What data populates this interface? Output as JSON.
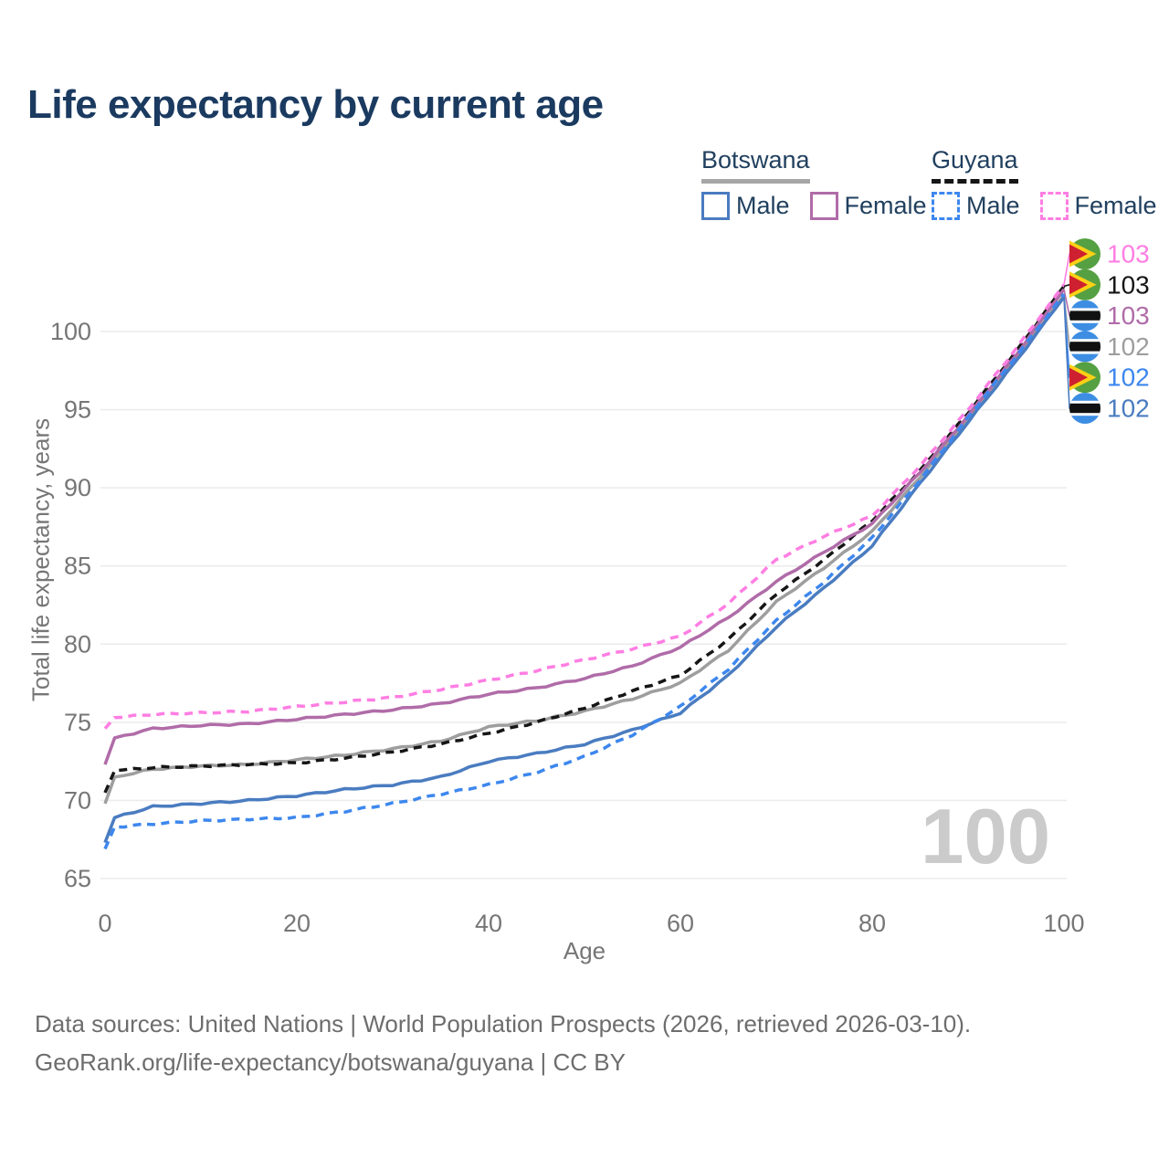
{
  "title": "Life expectancy by current age",
  "watermark": "100",
  "legend": {
    "groups": [
      {
        "label": "Botswana",
        "line_style": "solid",
        "underline_color": "#a6a6a6",
        "items": [
          {
            "label": "Male",
            "color": "#4a7cc0",
            "dash": false
          },
          {
            "label": "Female",
            "color": "#b06ca8",
            "dash": false
          }
        ]
      },
      {
        "label": "Guyana",
        "line_style": "dashed",
        "underline_color": "#161616",
        "items": [
          {
            "label": "Male",
            "color": "#3d87ee",
            "dash": true
          },
          {
            "label": "Female",
            "color": "#ff7ee3",
            "dash": true
          }
        ]
      }
    ]
  },
  "axes": {
    "y_title": "Total life expectancy, years",
    "x_title": "Age",
    "y_ticks": [
      100,
      95,
      90,
      85,
      80,
      75,
      70,
      65
    ],
    "x_ticks": [
      0,
      20,
      40,
      60,
      80,
      100
    ]
  },
  "chart_data": {
    "type": "line",
    "title": "Life expectancy by current age",
    "xlabel": "Age",
    "ylabel": "Total life expectancy, years",
    "xlim": [
      0,
      100
    ],
    "ylim": [
      65,
      103.5
    ],
    "grid": "horizontal",
    "x": [
      0,
      1,
      5,
      10,
      15,
      20,
      25,
      30,
      35,
      40,
      45,
      50,
      55,
      60,
      65,
      70,
      75,
      80,
      85,
      90,
      95,
      100
    ],
    "series": [
      {
        "name": "Botswana",
        "country": "Botswana",
        "sex": "Both",
        "color": "#9e9e9e",
        "dash": "solid",
        "values": [
          69.8,
          71.5,
          72.0,
          72.2,
          72.3,
          72.6,
          72.9,
          73.3,
          73.8,
          74.7,
          75.1,
          75.7,
          76.5,
          77.5,
          79.6,
          82.7,
          84.9,
          87.2,
          90.7,
          94.4,
          98.3,
          102.3
        ]
      },
      {
        "name": "Guyana",
        "country": "Guyana",
        "sex": "Both",
        "color": "#161616",
        "dash": "dashed",
        "values": [
          70.5,
          71.9,
          72.1,
          72.2,
          72.3,
          72.4,
          72.7,
          73.1,
          73.6,
          74.3,
          75.0,
          75.9,
          77.0,
          78.0,
          80.3,
          83.2,
          85.4,
          87.9,
          91.1,
          94.8,
          98.7,
          102.9
        ]
      },
      {
        "name": "Botswana Female",
        "country": "Botswana",
        "sex": "Female",
        "color": "#b06ca8",
        "dash": "solid",
        "values": [
          72.3,
          74.0,
          74.6,
          74.8,
          74.9,
          75.2,
          75.5,
          75.8,
          76.2,
          76.8,
          77.2,
          77.8,
          78.6,
          79.8,
          81.7,
          84.0,
          85.9,
          87.7,
          91.0,
          94.6,
          98.5,
          102.7
        ]
      },
      {
        "name": "Guyana Female",
        "country": "Guyana",
        "sex": "Female",
        "color": "#ff7ee3",
        "dash": "dashed",
        "values": [
          74.6,
          75.3,
          75.5,
          75.6,
          75.7,
          76.0,
          76.3,
          76.6,
          77.1,
          77.7,
          78.3,
          79.0,
          79.7,
          80.5,
          82.6,
          85.4,
          86.9,
          88.2,
          91.4,
          95.0,
          98.9,
          103.0
        ]
      },
      {
        "name": "Botswana Male",
        "country": "Botswana",
        "sex": "Male",
        "color": "#4a7cc0",
        "dash": "solid",
        "values": [
          67.3,
          68.9,
          69.6,
          69.8,
          70.0,
          70.3,
          70.7,
          71.0,
          71.5,
          72.5,
          73.0,
          73.6,
          74.5,
          75.6,
          78.0,
          81.1,
          83.6,
          86.3,
          90.3,
          94.2,
          98.1,
          102.2
        ]
      },
      {
        "name": "Guyana Male",
        "country": "Guyana",
        "sex": "Male",
        "color": "#3d87ee",
        "dash": "dashed",
        "values": [
          66.9,
          68.3,
          68.5,
          68.7,
          68.8,
          68.9,
          69.3,
          69.8,
          70.4,
          71.0,
          71.8,
          72.8,
          74.2,
          76.0,
          78.4,
          81.5,
          84.0,
          86.8,
          90.5,
          94.5,
          98.4,
          102.4
        ]
      }
    ],
    "end_labels": [
      {
        "value": "103",
        "series": "Guyana Female",
        "flag": "guyana"
      },
      {
        "value": "103",
        "series": "Guyana",
        "flag": "guyana"
      },
      {
        "value": "103",
        "series": "Botswana Female",
        "flag": "botswana"
      },
      {
        "value": "102",
        "series": "Botswana",
        "flag": "botswana"
      },
      {
        "value": "102",
        "series": "Guyana Male",
        "flag": "guyana"
      },
      {
        "value": "102",
        "series": "Botswana Male",
        "flag": "botswana"
      }
    ]
  },
  "footer": {
    "line1": "Data sources: United Nations | World Population Prospects (2026, retrieved 2026-03-10).",
    "line2": "GeoRank.org/life-expectancy/botswana/guyana | CC BY"
  }
}
